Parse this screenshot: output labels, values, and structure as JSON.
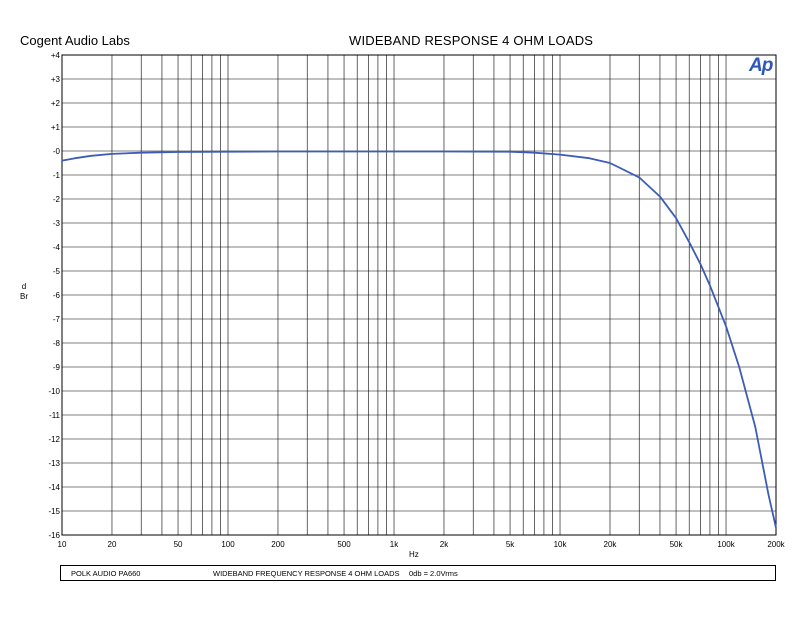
{
  "header": {
    "brand": "Cogent Audio Labs",
    "title": "WIDEBAND RESPONSE  4 OHM LOADS",
    "logo_text": "Ap"
  },
  "footer": {
    "device": "POLK AUDIO PA660",
    "description": "WIDEBAND FREQUENCY RESPONSE   4 OHM LOADS",
    "reference": "0db = 2.0Vrms"
  },
  "colors": {
    "trace": "#3c5cb8",
    "grid": "#000000",
    "logo": "#2e57b8"
  },
  "chart_data": {
    "type": "line",
    "title": "WIDEBAND RESPONSE  4 OHM LOADS",
    "xlabel": "Hz",
    "ylabel": "dBr",
    "x_scale": "log",
    "xlim": [
      10,
      200000
    ],
    "ylim": [
      -16,
      4
    ],
    "grid": true,
    "x_ticks": [
      {
        "value": 10,
        "label": "10"
      },
      {
        "value": 20,
        "label": "20"
      },
      {
        "value": 50,
        "label": "50"
      },
      {
        "value": 100,
        "label": "100"
      },
      {
        "value": 200,
        "label": "200"
      },
      {
        "value": 500,
        "label": "500"
      },
      {
        "value": 1000,
        "label": "1k"
      },
      {
        "value": 2000,
        "label": "2k"
      },
      {
        "value": 5000,
        "label": "5k"
      },
      {
        "value": 10000,
        "label": "10k"
      },
      {
        "value": 20000,
        "label": "20k"
      },
      {
        "value": 50000,
        "label": "50k"
      },
      {
        "value": 100000,
        "label": "100k"
      },
      {
        "value": 200000,
        "label": "200k"
      }
    ],
    "y_ticks": [
      {
        "value": 4,
        "label": "+4"
      },
      {
        "value": 3,
        "label": "+3"
      },
      {
        "value": 2,
        "label": "+2"
      },
      {
        "value": 1,
        "label": "+1"
      },
      {
        "value": 0,
        "label": "-0"
      },
      {
        "value": -1,
        "label": "-1"
      },
      {
        "value": -2,
        "label": "-2"
      },
      {
        "value": -3,
        "label": "-3"
      },
      {
        "value": -4,
        "label": "-4"
      },
      {
        "value": -5,
        "label": "-5"
      },
      {
        "value": -6,
        "label": "-6"
      },
      {
        "value": -7,
        "label": "-7"
      },
      {
        "value": -8,
        "label": "-8"
      },
      {
        "value": -9,
        "label": "-9"
      },
      {
        "value": -10,
        "label": "-10"
      },
      {
        "value": -11,
        "label": "-11"
      },
      {
        "value": -12,
        "label": "-12"
      },
      {
        "value": -13,
        "label": "-13"
      },
      {
        "value": -14,
        "label": "-14"
      },
      {
        "value": -15,
        "label": "-15"
      },
      {
        "value": -16,
        "label": "-16"
      }
    ],
    "series": [
      {
        "x": [
          10,
          12,
          15,
          20,
          30,
          50,
          100,
          200,
          500,
          1000,
          2000,
          5000,
          7000,
          10000,
          15000,
          20000,
          30000,
          40000,
          50000,
          60000,
          70000,
          80000,
          100000,
          120000,
          150000,
          180000,
          200000
        ],
        "values": [
          -0.4,
          -0.3,
          -0.2,
          -0.12,
          -0.07,
          -0.04,
          -0.03,
          -0.02,
          -0.02,
          -0.02,
          -0.02,
          -0.03,
          -0.07,
          -0.15,
          -0.3,
          -0.5,
          -1.1,
          -1.9,
          -2.8,
          -3.8,
          -4.7,
          -5.6,
          -7.3,
          -9.0,
          -11.5,
          -14.3,
          -15.7
        ]
      }
    ]
  }
}
